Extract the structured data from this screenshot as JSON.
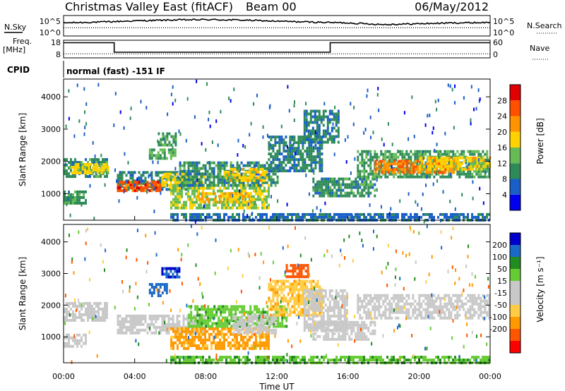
{
  "header": {
    "title": "Christmas Valley East (fitACF)",
    "beam": "Beam 00",
    "date": "06/May/2012"
  },
  "mode_text": "normal (fast) -151 IF",
  "left_labels": {
    "nsky": "N.Sky",
    "freq": "Freq.",
    "freq_unit": "[MHz]",
    "cpid": "CPID"
  },
  "right_labels": {
    "nsearch": "N.Search",
    "nave": "Nave"
  },
  "colors": {
    "power_scale": [
      "#0000ee",
      "#1a5fc8",
      "#2e8b57",
      "#66bb55",
      "#ffd200",
      "#ff9400",
      "#ff5000",
      "#e00000"
    ],
    "velocity_scale": [
      "#ff0000",
      "#ff5500",
      "#ff9900",
      "#ffcc44",
      "#c8c8c8",
      "#c8c8c8",
      "#66cc33",
      "#228b22",
      "#1a6ac8",
      "#0000cc"
    ]
  },
  "chart_data": [
    {
      "type": "line",
      "panel": "N.Sky",
      "y_ticks": [
        "10^5",
        "10^0"
      ],
      "right_ticks": [
        "10^5",
        "10^0"
      ],
      "series": [
        {
          "name": "N.Sky",
          "x_hours": [
            0,
            2,
            4,
            6,
            8,
            10,
            12,
            14,
            16,
            18,
            20,
            22,
            24
          ],
          "values": [
            3.2,
            3.4,
            3.7,
            3.9,
            4.0,
            3.9,
            3.6,
            3.4,
            3.2,
            2.8,
            3.0,
            3.2,
            3.3
          ]
        },
        {
          "name": "N.Search",
          "x_hours": [
            0,
            24
          ],
          "values": [
            2.0,
            2.0
          ]
        }
      ],
      "ylim": [
        0,
        5
      ]
    },
    {
      "type": "line",
      "panel": "Freq",
      "y_ticks": [
        "18",
        "8"
      ],
      "right_ticks": [
        "60",
        "0"
      ],
      "series": [
        {
          "name": "Freq.",
          "x_hours": [
            0,
            2.85,
            2.85,
            15.0,
            15.0,
            24
          ],
          "values": [
            16.6,
            16.6,
            11.2,
            11.2,
            16.6,
            16.6
          ]
        },
        {
          "name": "Nave",
          "x_hours": [
            0,
            24
          ],
          "values": [
            10.3,
            10.3
          ]
        }
      ],
      "ylim": [
        8,
        18
      ]
    },
    {
      "type": "heatmap",
      "panel": "Power",
      "ylabel": "Slant Range [km]",
      "y_ticks": [
        1000,
        2000,
        3000,
        4000
      ],
      "ylim": [
        180,
        4550
      ],
      "xlim": [
        0,
        24
      ],
      "colorbar_label": "Power [dB]",
      "colorbar_ticks": [
        4,
        8,
        12,
        16,
        20,
        24,
        28
      ],
      "colorbar_range": [
        0,
        32
      ],
      "bands": [
        {
          "t0": 0.0,
          "t1": 2.5,
          "r0": 1550,
          "r1": 2100,
          "value": 10
        },
        {
          "t0": 0.3,
          "t1": 2.5,
          "r0": 1650,
          "r1": 1950,
          "value": 17
        },
        {
          "t0": 0.0,
          "t1": 1.2,
          "r0": 700,
          "r1": 1100,
          "value": 11
        },
        {
          "t0": 3.0,
          "t1": 7.0,
          "r0": 1100,
          "r1": 1700,
          "value": 9
        },
        {
          "t0": 3.0,
          "t1": 5.5,
          "r0": 1100,
          "r1": 1400,
          "value": 26
        },
        {
          "t0": 5.5,
          "t1": 8.0,
          "r0": 1300,
          "r1": 1650,
          "value": 17
        },
        {
          "t0": 4.8,
          "t1": 6.3,
          "r0": 2100,
          "r1": 2400,
          "value": 13
        },
        {
          "t0": 5.3,
          "t1": 6.3,
          "r0": 2550,
          "r1": 2900,
          "value": 11
        },
        {
          "t0": 6.0,
          "t1": 11.5,
          "r0": 600,
          "r1": 1300,
          "value": 15
        },
        {
          "t0": 7.5,
          "t1": 10.5,
          "r0": 750,
          "r1": 1050,
          "value": 20
        },
        {
          "t0": 6.5,
          "t1": 12.0,
          "r0": 1300,
          "r1": 2000,
          "value": 10
        },
        {
          "t0": 9.0,
          "t1": 11.5,
          "r0": 1400,
          "r1": 1800,
          "value": 18
        },
        {
          "t0": 11.5,
          "t1": 14.5,
          "r0": 1700,
          "r1": 2800,
          "value": 9
        },
        {
          "t0": 13.5,
          "t1": 15.5,
          "r0": 2600,
          "r1": 3600,
          "value": 9
        },
        {
          "t0": 14.0,
          "t1": 17.5,
          "r0": 900,
          "r1": 1500,
          "value": 10
        },
        {
          "t0": 16.5,
          "t1": 24.0,
          "r0": 1550,
          "r1": 2350,
          "value": 11
        },
        {
          "t0": 17.5,
          "t1": 22.0,
          "r0": 1700,
          "r1": 2050,
          "value": 23
        },
        {
          "t0": 20.0,
          "t1": 24.0,
          "r0": 1800,
          "r1": 2150,
          "value": 18
        },
        {
          "t0": 6.0,
          "t1": 24.0,
          "r0": 180,
          "r1": 400,
          "value": 7
        }
      ]
    },
    {
      "type": "heatmap",
      "panel": "Velocity",
      "ylabel": "Slant Range [km]",
      "xlabel": "Time UT",
      "x_ticks": [
        "00:00",
        "04:00",
        "08:00",
        "12:00",
        "16:00",
        "20:00",
        "00:00"
      ],
      "y_ticks": [
        1000,
        2000,
        3000,
        4000
      ],
      "ylim": [
        180,
        4550
      ],
      "xlim": [
        0,
        24
      ],
      "colorbar_label": "Velocity [m s⁻¹]",
      "colorbar_ticks": [
        200,
        100,
        50,
        15,
        -15,
        -50,
        -100,
        -200
      ],
      "colorbar_range": [
        -250,
        250
      ],
      "bands": [
        {
          "t0": 0.0,
          "t1": 2.5,
          "r0": 1550,
          "r1": 2100,
          "value": 0
        },
        {
          "t0": 0.0,
          "t1": 1.2,
          "r0": 700,
          "r1": 1100,
          "value": 0
        },
        {
          "t0": 3.0,
          "t1": 8.0,
          "r0": 1100,
          "r1": 1700,
          "value": 0
        },
        {
          "t0": 4.8,
          "t1": 5.8,
          "r0": 2300,
          "r1": 2700,
          "value": 150
        },
        {
          "t0": 5.5,
          "t1": 6.5,
          "r0": 2900,
          "r1": 3200,
          "value": 200
        },
        {
          "t0": 6.0,
          "t1": 11.5,
          "r0": 600,
          "r1": 1300,
          "value": -60
        },
        {
          "t0": 7.0,
          "t1": 12.5,
          "r0": 1300,
          "r1": 2000,
          "value": 40
        },
        {
          "t0": 9.5,
          "t1": 12.0,
          "r0": 1100,
          "r1": 1700,
          "value": 0
        },
        {
          "t0": 11.5,
          "t1": 14.5,
          "r0": 1700,
          "r1": 2800,
          "value": -40
        },
        {
          "t0": 12.5,
          "t1": 13.8,
          "r0": 2900,
          "r1": 3300,
          "value": -180
        },
        {
          "t0": 13.5,
          "t1": 16.0,
          "r0": 1200,
          "r1": 2500,
          "value": 0
        },
        {
          "t0": 14.0,
          "t1": 17.5,
          "r0": 900,
          "r1": 1500,
          "value": 0
        },
        {
          "t0": 16.5,
          "t1": 24.0,
          "r0": 1550,
          "r1": 2350,
          "value": 0
        },
        {
          "t0": 6.0,
          "t1": 24.0,
          "r0": 180,
          "r1": 400,
          "value": 45
        }
      ]
    }
  ]
}
